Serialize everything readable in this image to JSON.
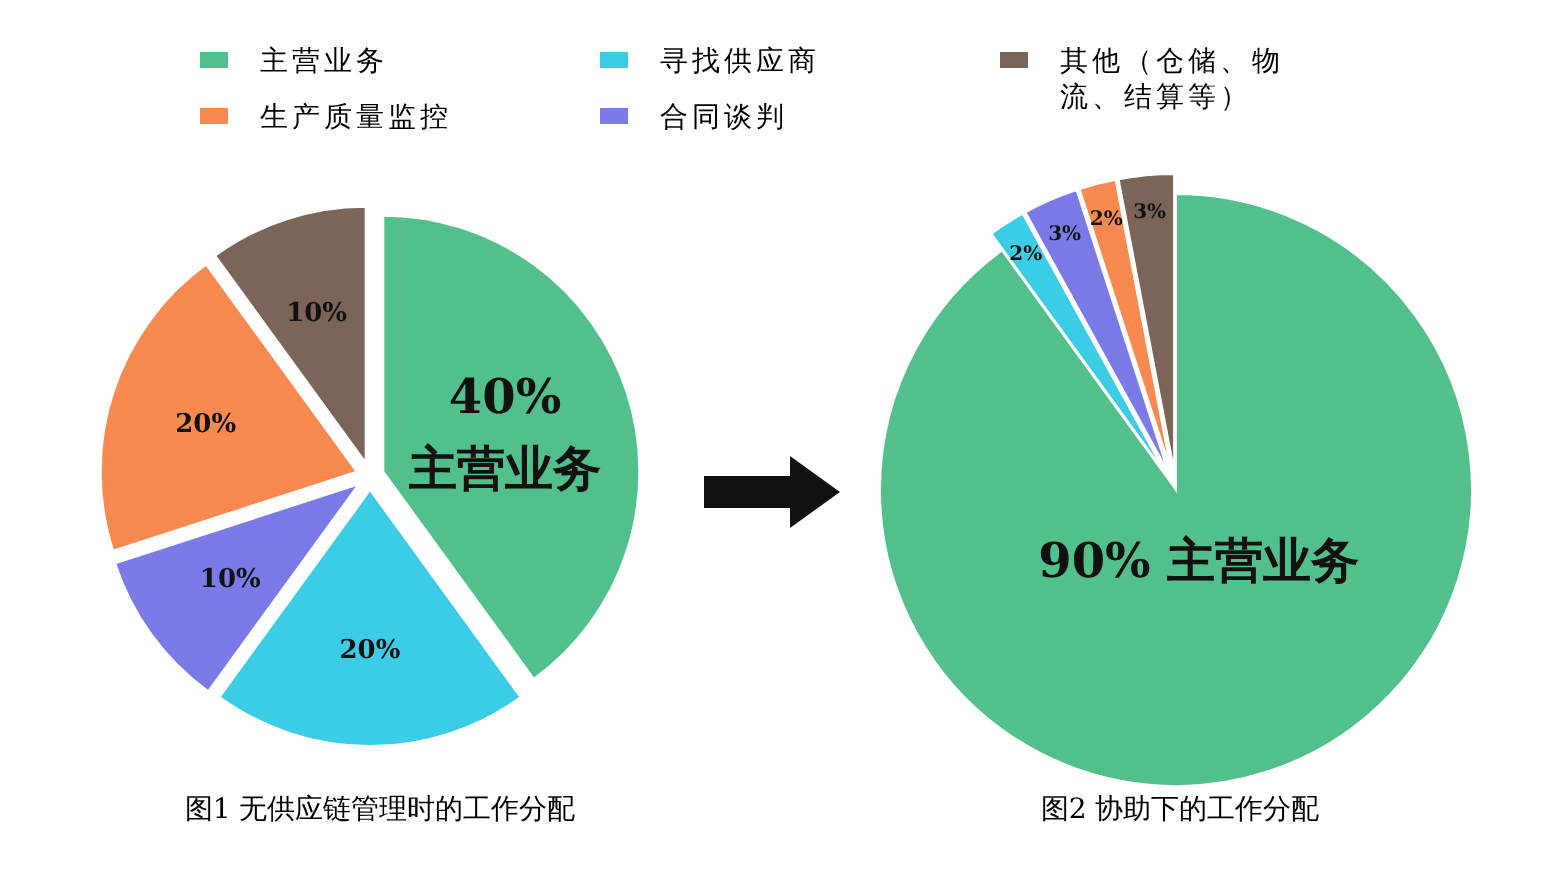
{
  "chart_data": [
    {
      "type": "pie",
      "title": "图1 无供应链管理时的工作分配",
      "legend": "top",
      "categories": [
        "主营业务",
        "寻找供应商",
        "合同谈判",
        "生产质量监控",
        "其他（仓储、物流、结算等）"
      ],
      "values": [
        40,
        20,
        10,
        20,
        10
      ],
      "colors": [
        "#52c08a",
        "#3ccde6",
        "#7b7be8",
        "#f88a50",
        "#7a6558"
      ],
      "value_labels": [
        "40%\n主营业务",
        "20%",
        "10%",
        "20%",
        "10%"
      ]
    },
    {
      "type": "pie",
      "title": "图2 协助下的工作分配",
      "categories": [
        null,
        null,
        null,
        null,
        null
      ],
      "values": [
        90,
        2,
        3,
        2,
        3
      ],
      "colors": [
        "#52c08a",
        "#3ccde6",
        "#7b7be8",
        "#f88a50",
        "#7a6558"
      ],
      "value_labels": [
        "90% 主营业务",
        "2%",
        "3%",
        "2%",
        "3%"
      ]
    }
  ]
}
